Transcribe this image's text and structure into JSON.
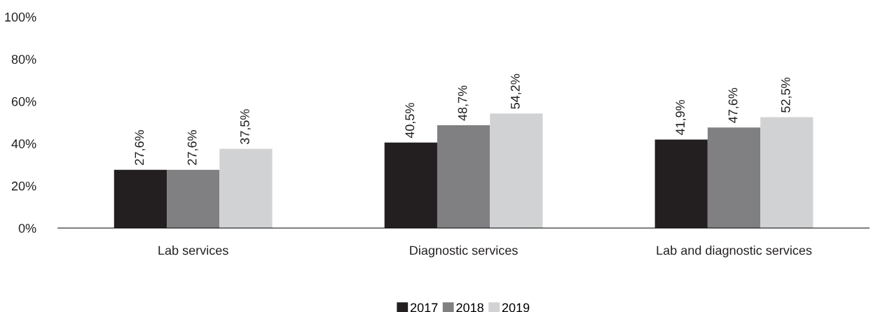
{
  "chart_data": {
    "type": "bar",
    "categories": [
      "Lab services",
      "Diagnostic services",
      "Lab and diagnostic services"
    ],
    "series": [
      {
        "name": "2017",
        "color": "#231f20",
        "values": [
          27.6,
          40.5,
          41.9
        ],
        "value_labels": [
          "27,6%",
          "40,5%",
          "41,9%"
        ]
      },
      {
        "name": "2018",
        "color": "#808083",
        "values": [
          27.6,
          48.7,
          47.6
        ],
        "value_labels": [
          "27,6%",
          "48,7%",
          "47,6%"
        ]
      },
      {
        "name": "2019",
        "color": "#d1d2d4",
        "values": [
          37.5,
          54.2,
          52.5
        ],
        "value_labels": [
          "37,5%",
          "54,2%",
          "52,5%"
        ]
      }
    ],
    "ylim": [
      0,
      100
    ],
    "yticks": [
      {
        "value": 0,
        "label": "0%"
      },
      {
        "value": 20,
        "label": "20%"
      },
      {
        "value": 40,
        "label": "40%"
      },
      {
        "value": 60,
        "label": "60%"
      },
      {
        "value": 80,
        "label": "80%"
      },
      {
        "value": 100,
        "label": "100%"
      }
    ],
    "grid": false,
    "legend": "bottom"
  }
}
